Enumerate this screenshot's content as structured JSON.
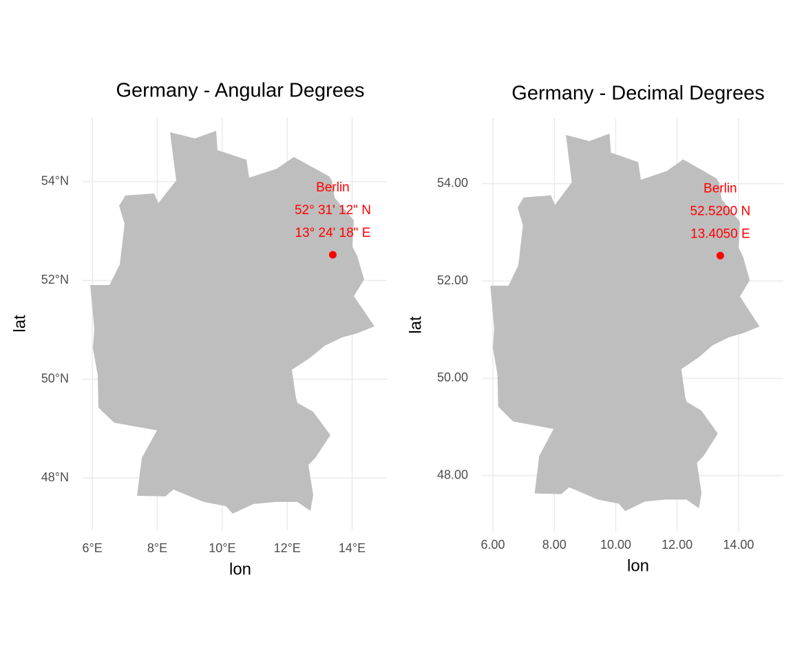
{
  "chart_data": [
    {
      "type": "map",
      "title": "Germany - Angular Degrees",
      "xlabel": "lon",
      "ylabel": "lat",
      "xlim": [
        5.7,
        15.07
      ],
      "ylim": [
        46.94,
        55.31
      ],
      "xticks": [
        {
          "value": 6,
          "label": "6°E"
        },
        {
          "value": 8,
          "label": "8°E"
        },
        {
          "value": 10,
          "label": "10°E"
        },
        {
          "value": 12,
          "label": "12°E"
        },
        {
          "value": 14,
          "label": "14°E"
        }
      ],
      "yticks": [
        {
          "value": 48,
          "label": "48°N"
        },
        {
          "value": 50,
          "label": "50°N"
        },
        {
          "value": 52,
          "label": "52°N"
        },
        {
          "value": 54,
          "label": "54°N"
        }
      ],
      "grid": true,
      "fill": "#bebebe",
      "point": {
        "x": 13.405,
        "y": 52.52,
        "color": "#ff0000",
        "labels": [
          "Berlin",
          "52° 31' 12\" N",
          "13° 24' 18\" E"
        ]
      }
    },
    {
      "type": "map",
      "title": "Germany - Decimal Degrees",
      "xlabel": "lon",
      "ylabel": "lat",
      "xlim": [
        5.64,
        15.46
      ],
      "ylim": [
        46.85,
        55.34
      ],
      "xticks": [
        {
          "value": 6,
          "label": "6.00"
        },
        {
          "value": 8,
          "label": "8.00"
        },
        {
          "value": 10,
          "label": "10.00"
        },
        {
          "value": 12,
          "label": "12.00"
        },
        {
          "value": 14,
          "label": "14.00"
        }
      ],
      "yticks": [
        {
          "value": 48,
          "label": "48.00"
        },
        {
          "value": 50,
          "label": "50.00"
        },
        {
          "value": 52,
          "label": "52.00"
        },
        {
          "value": 54,
          "label": "54.00"
        }
      ],
      "grid": true,
      "fill": "#bebebe",
      "point": {
        "x": 13.405,
        "y": 52.52,
        "color": "#ff0000",
        "labels": [
          "Berlin",
          "52.5200 N",
          "13.4050 E"
        ]
      }
    }
  ]
}
